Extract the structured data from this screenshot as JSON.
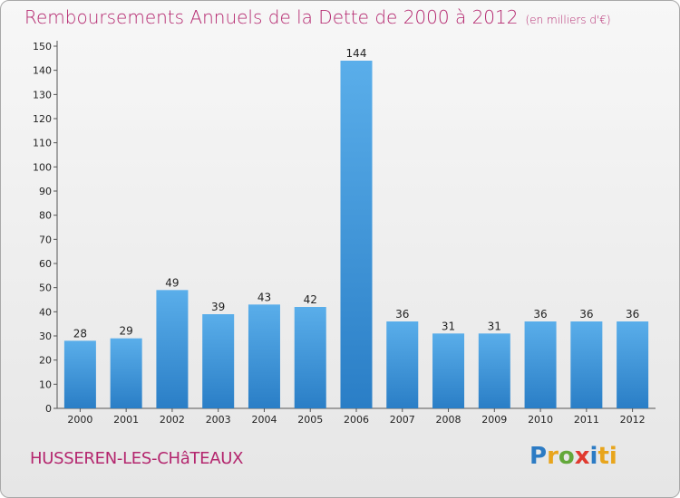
{
  "title": "Remboursements Annuels de la Dette de 2000 à 2012",
  "unit_note": "(en milliers d'€)",
  "commune": "HUSSEREN-LES-CHâTEAUX",
  "logo": {
    "letters": [
      "P",
      "r",
      "o",
      "x",
      "i",
      "ti"
    ]
  },
  "colors": {
    "bar_top": "#5aaeea",
    "bar_bottom": "#2a7ec6",
    "title": "#b4266e"
  },
  "chart_data": {
    "type": "bar",
    "categories": [
      "2000",
      "2001",
      "2002",
      "2003",
      "2004",
      "2005",
      "2006",
      "2007",
      "2008",
      "2009",
      "2010",
      "2011",
      "2012"
    ],
    "values": [
      28,
      29,
      49,
      39,
      43,
      42,
      144,
      36,
      31,
      31,
      36,
      36,
      36
    ],
    "ylim": [
      0,
      150
    ],
    "yticks": [
      0,
      10,
      20,
      30,
      40,
      50,
      60,
      70,
      80,
      90,
      100,
      110,
      120,
      130,
      140,
      150
    ],
    "grid": false
  }
}
